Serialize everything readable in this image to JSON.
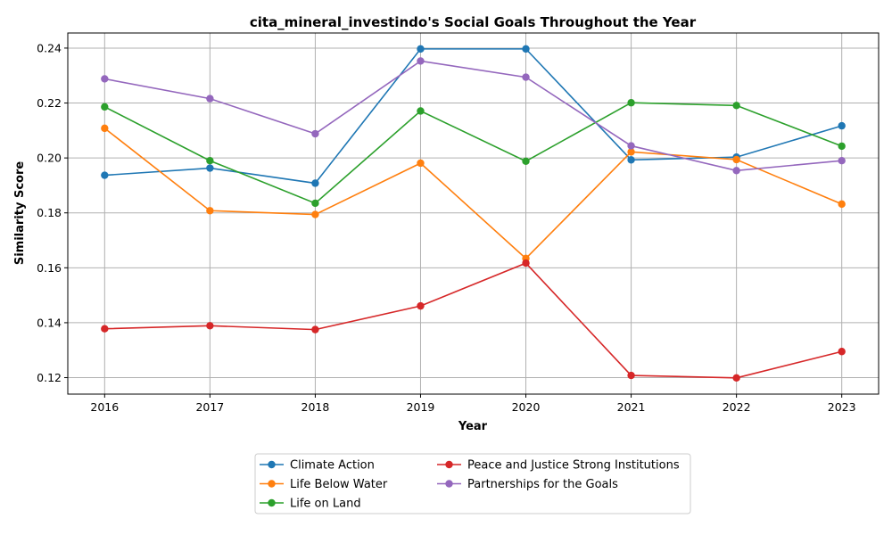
{
  "chart_data": {
    "type": "line",
    "title": "cita_mineral_investindo's Social Goals Throughout the Year",
    "xlabel": "Year",
    "ylabel": "Similarity Score",
    "x": [
      2016,
      2017,
      2018,
      2019,
      2020,
      2021,
      2022,
      2023
    ],
    "ylim": [
      0.114,
      0.2455
    ],
    "yticks": [
      0.12,
      0.14,
      0.16,
      0.18,
      0.2,
      0.22,
      0.24
    ],
    "ytick_labels": [
      "0.12",
      "0.14",
      "0.16",
      "0.18",
      "0.20",
      "0.22",
      "0.24"
    ],
    "grid": true,
    "legend_position": "bottom-center",
    "series": [
      {
        "name": "Climate Action",
        "color": "#1f77b4",
        "values": [
          0.1937,
          0.1963,
          0.1908,
          0.2397,
          0.2397,
          0.1993,
          0.2003,
          0.2117
        ]
      },
      {
        "name": "Life Below Water",
        "color": "#ff7f0e",
        "values": [
          0.2108,
          0.1808,
          0.1794,
          0.1981,
          0.1634,
          0.2022,
          0.1994,
          0.1832
        ]
      },
      {
        "name": "Life on Land",
        "color": "#2ca02c",
        "values": [
          0.2186,
          0.199,
          0.1835,
          0.2171,
          0.1988,
          0.2201,
          0.2191,
          0.2043
        ]
      },
      {
        "name": "Peace and Justice Strong Institutions",
        "color": "#d62728",
        "values": [
          0.1378,
          0.1389,
          0.1375,
          0.1461,
          0.1617,
          0.1208,
          0.1199,
          0.1295
        ]
      },
      {
        "name": "Partnerships for the Goals",
        "color": "#9467bd",
        "values": [
          0.2288,
          0.2216,
          0.2088,
          0.2353,
          0.2294,
          0.2044,
          0.1954,
          0.199
        ]
      }
    ]
  }
}
